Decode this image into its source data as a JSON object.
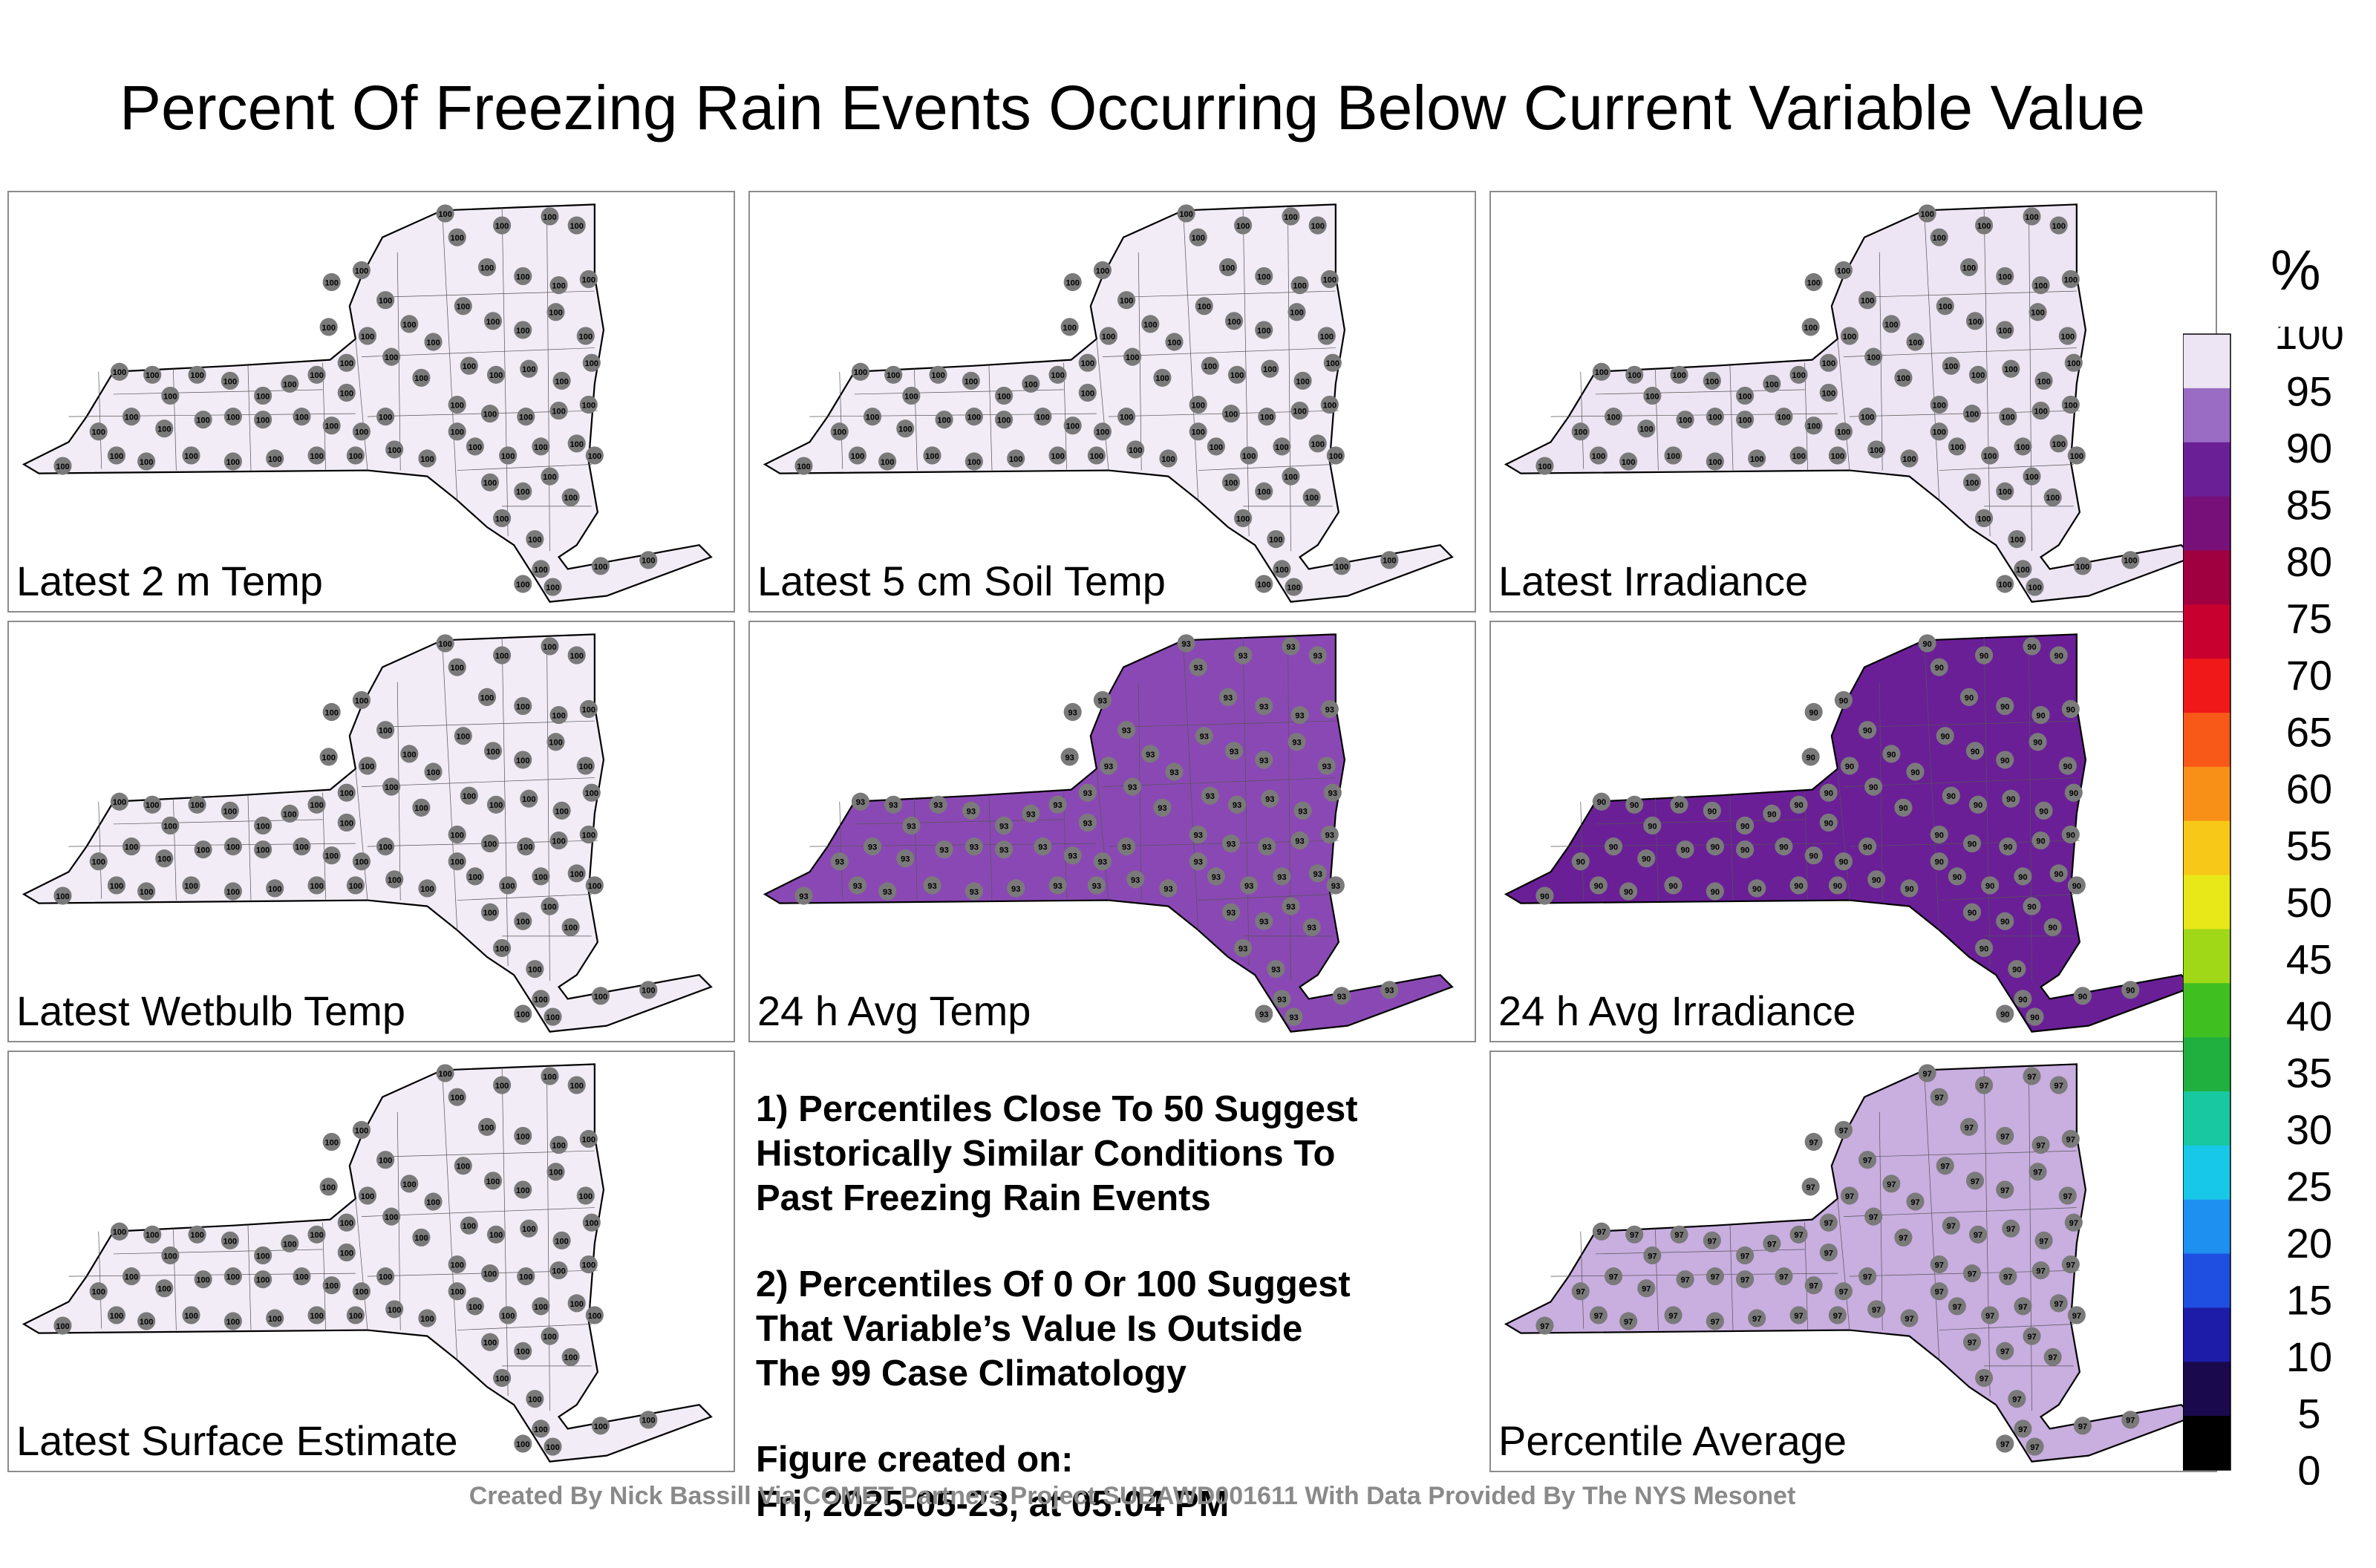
{
  "title": "Percent Of Freezing Rain Events Occurring Below Current Variable Value",
  "panels": [
    {
      "label": "Latest 2 m Temp",
      "fill": "#f1ecf6",
      "value": 100
    },
    {
      "label": "Latest 5 cm Soil Temp",
      "fill": "#f1ecf6",
      "value": 100
    },
    {
      "label": "Latest Irradiance",
      "fill": "#ede5f3",
      "value": 100
    },
    {
      "label": "Latest Wetbulb Temp",
      "fill": "#f1ecf6",
      "value": 100
    },
    {
      "label": "24 h Avg Temp",
      "fill": "#8a48b4",
      "value": 93
    },
    {
      "label": "24 h Avg Irradiance",
      "fill": "#6a1f97",
      "value": 90
    },
    {
      "label": "Latest Surface Estimate",
      "fill": "#f1ecf6",
      "value": 100
    },
    {
      "label": "Percentile Average",
      "fill": "#c9aee0",
      "value": 97
    }
  ],
  "notes": {
    "note1": [
      "1) Percentiles Close To 50 Suggest",
      "Historically Similar Conditions To",
      "Past Freezing Rain Events"
    ],
    "note2": [
      "2) Percentiles Of 0 Or 100 Suggest",
      "That Variable’s Value Is Outside",
      "The 99 Case Climatology"
    ],
    "created": [
      "Figure created on:",
      "Fri, 2025-05-23, at 05:04 PM"
    ]
  },
  "footer": "Created By Nick Bassill Via COMET Partners Project SUBAWD001611 With Data Provided By The NYS Mesonet",
  "colorbar": {
    "unit": "%",
    "ticks": [
      "0",
      "5",
      "10",
      "15",
      "20",
      "25",
      "30",
      "35",
      "40",
      "45",
      "50",
      "55",
      "60",
      "65",
      "70",
      "75",
      "80",
      "85",
      "90",
      "95",
      "100"
    ],
    "colors": [
      "#000000",
      "#1a0a4d",
      "#1c1ca8",
      "#1e4fe0",
      "#1e90f0",
      "#18c8e8",
      "#18c8a0",
      "#20b040",
      "#40c020",
      "#a0d818",
      "#e8e818",
      "#f8c818",
      "#f89018",
      "#f85818",
      "#f01818",
      "#c80030",
      "#a00040",
      "#78107a",
      "#6a1f97",
      "#9a6cc4",
      "#ede5f3"
    ]
  }
}
